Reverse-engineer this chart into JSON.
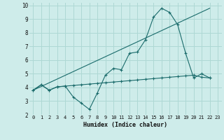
{
  "xlabel": "Humidex (Indice chaleur)",
  "background_color": "#ceecea",
  "grid_color": "#aed8d4",
  "line_color": "#1a6b6b",
  "xlim": [
    -0.5,
    23.5
  ],
  "ylim": [
    2,
    10.2
  ],
  "xticks": [
    0,
    1,
    2,
    3,
    4,
    5,
    6,
    7,
    8,
    9,
    10,
    11,
    12,
    13,
    14,
    15,
    16,
    17,
    18,
    19,
    20,
    21,
    22,
    23
  ],
  "yticks": [
    2,
    3,
    4,
    5,
    6,
    7,
    8,
    9,
    10
  ],
  "series0_x": [
    0,
    1,
    2,
    3,
    4,
    5,
    6,
    7,
    8,
    9,
    10,
    11,
    12,
    13,
    14,
    15,
    16,
    17,
    18,
    19,
    20,
    21,
    22
  ],
  "series0_y": [
    3.8,
    4.2,
    3.8,
    4.05,
    4.1,
    3.3,
    2.85,
    2.4,
    3.6,
    4.9,
    5.4,
    5.3,
    6.5,
    6.6,
    7.5,
    9.15,
    9.8,
    9.5,
    8.6,
    6.5,
    4.7,
    5.0,
    4.7
  ],
  "series1_x": [
    0,
    1,
    2,
    3,
    4,
    5,
    6,
    7,
    8,
    9,
    10,
    11,
    12,
    13,
    14,
    15,
    16,
    17,
    18,
    19,
    20,
    21,
    22
  ],
  "series1_y": [
    3.8,
    4.2,
    3.8,
    4.05,
    4.1,
    4.15,
    4.2,
    4.25,
    4.3,
    4.35,
    4.4,
    4.45,
    4.5,
    4.55,
    4.6,
    4.65,
    4.7,
    4.75,
    4.8,
    4.85,
    4.9,
    4.75,
    4.7
  ],
  "series2_x": [
    0,
    22
  ],
  "series2_y": [
    3.8,
    9.8
  ]
}
